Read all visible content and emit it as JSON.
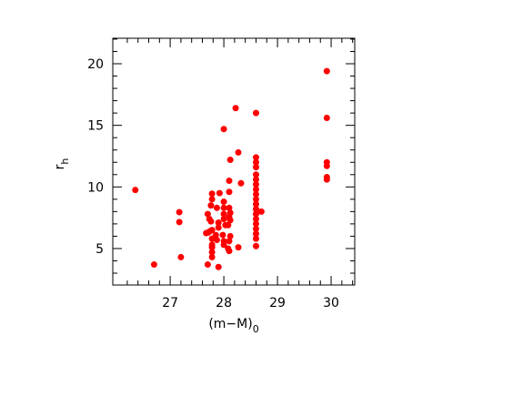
{
  "chart_data": {
    "type": "scatter",
    "xlabel": "(m−M)",
    "xlabel_subscript": "0",
    "ylabel": "r",
    "ylabel_subscript": "h",
    "x": [
      26.35,
      26.7,
      27.17,
      27.17,
      27.2,
      27.67,
      27.71,
      27.74,
      27.7,
      27.78,
      27.78,
      27.76,
      27.73,
      27.76,
      27.78,
      27.78,
      27.78,
      27.78,
      27.78,
      27.78,
      27.7,
      27.9,
      27.92,
      27.87,
      27.9,
      27.9,
      27.85,
      27.87,
      28.0,
      28.0,
      28.0,
      28.0,
      28.03,
      27.98,
      28.0,
      28.0,
      28.0,
      28.12,
      28.1,
      28.1,
      28.1,
      28.12,
      28.1,
      28.08,
      28.12,
      28.1,
      28.08,
      28.1,
      28.12,
      28.22,
      28.27,
      28.32,
      28.27,
      28.6,
      28.6,
      28.6,
      28.6,
      28.6,
      28.6,
      28.6,
      28.6,
      28.6,
      28.6,
      28.6,
      28.6,
      28.6,
      28.6,
      28.6,
      28.6,
      28.6,
      28.6,
      28.6,
      28.7,
      29.92,
      29.92,
      29.92,
      29.92,
      29.92,
      29.92
    ],
    "values": [
      9.75,
      3.7,
      7.95,
      7.15,
      4.3,
      6.25,
      6.3,
      6.4,
      7.8,
      9.45,
      9.0,
      8.5,
      7.4,
      7.2,
      6.5,
      5.8,
      5.3,
      5.1,
      4.7,
      4.3,
      3.7,
      3.5,
      9.5,
      8.3,
      7.1,
      6.7,
      6.1,
      5.7,
      8.8,
      8.3,
      7.8,
      7.4,
      6.9,
      6.1,
      5.6,
      5.3,
      14.7,
      12.2,
      10.5,
      9.6,
      8.3,
      7.9,
      7.55,
      6.9,
      6.0,
      5.6,
      5.0,
      4.8,
      7.3,
      16.4,
      12.8,
      10.3,
      5.1,
      12.4,
      12.0,
      11.6,
      11.0,
      10.6,
      10.2,
      9.8,
      9.4,
      9.0,
      8.6,
      8.2,
      7.8,
      7.4,
      7.0,
      6.6,
      6.2,
      5.8,
      5.2,
      16.0,
      8.0,
      19.4,
      15.6,
      12.0,
      11.7,
      10.8,
      10.6
    ],
    "color": "#ff0000",
    "xlim": [
      25.93,
      30.44
    ],
    "ylim": [
      2.04,
      22.07
    ],
    "xticks": [
      27,
      28,
      29,
      30
    ],
    "yticks": [
      5,
      10,
      15,
      20
    ]
  }
}
